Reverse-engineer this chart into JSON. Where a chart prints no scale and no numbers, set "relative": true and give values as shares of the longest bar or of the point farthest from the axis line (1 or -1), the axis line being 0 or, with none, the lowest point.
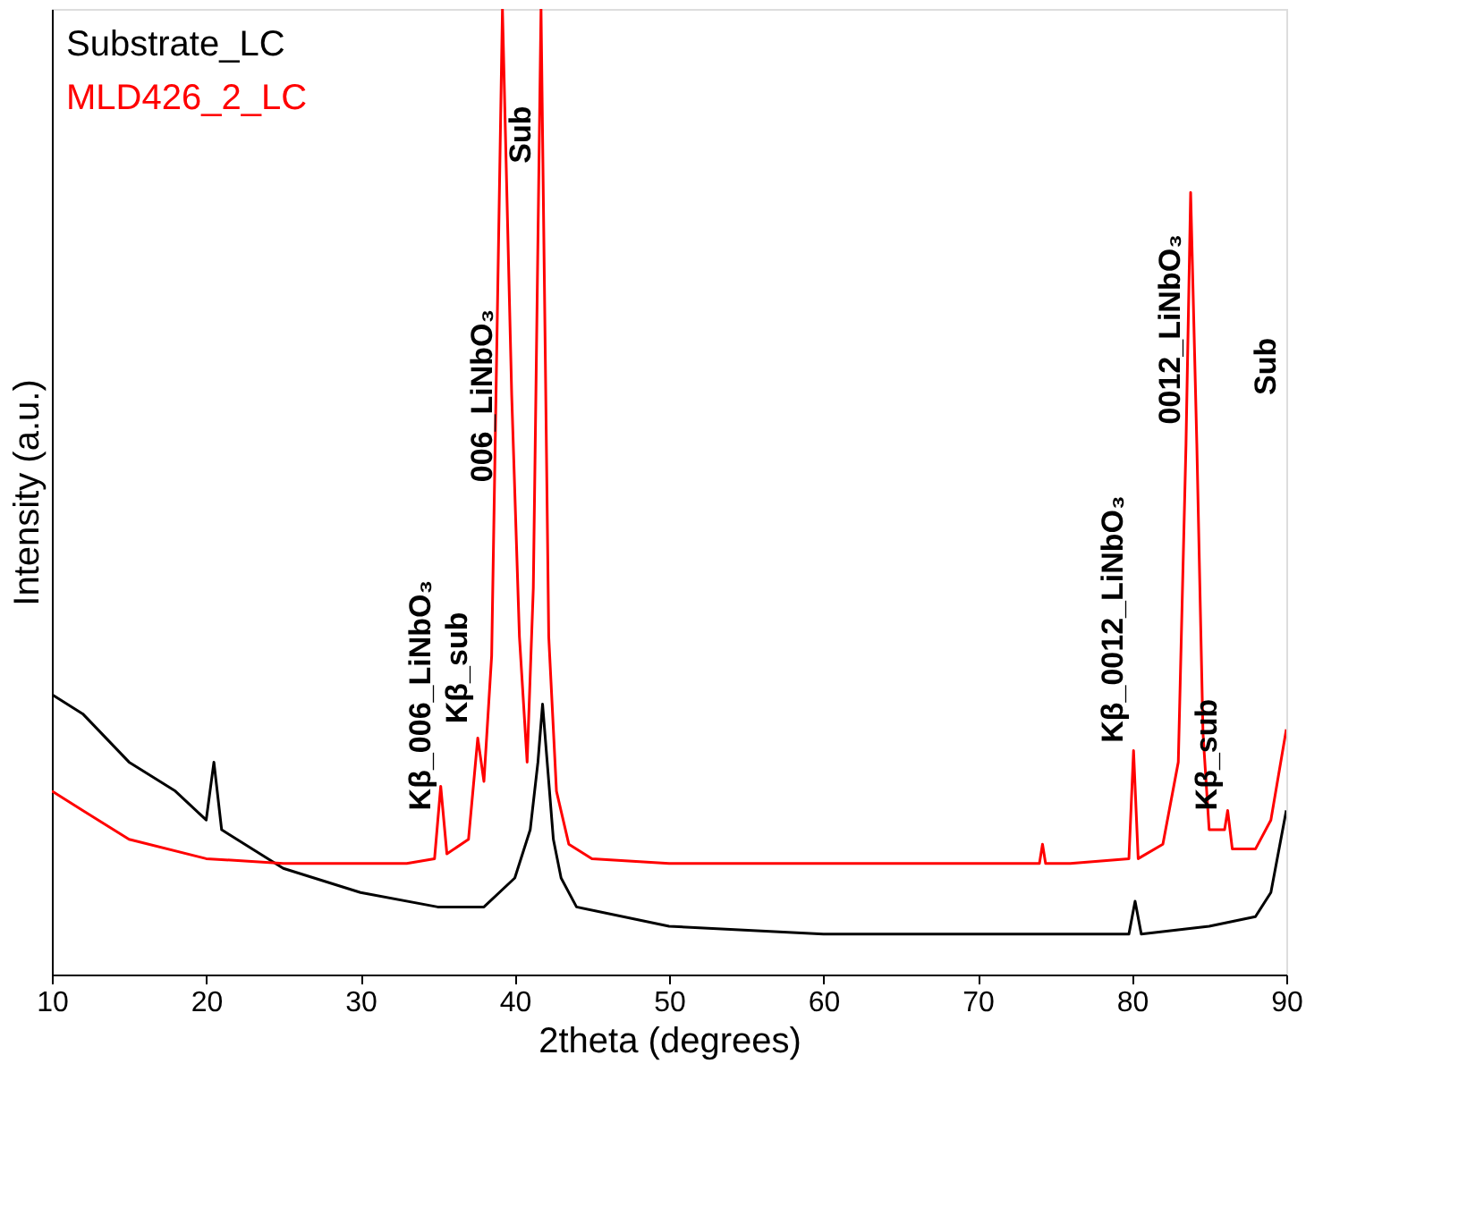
{
  "chart_data": {
    "type": "line",
    "relative": true,
    "xlabel": "2theta (degrees)",
    "ylabel": "Intensity (a.u.)",
    "xlim": [
      10,
      90
    ],
    "xticks": [
      10,
      20,
      30,
      40,
      50,
      60,
      70,
      80,
      90
    ],
    "legend": "top left",
    "grid": false,
    "line_style": "solid",
    "marker": "none",
    "series": [
      {
        "name": "Substrate_LC",
        "color": "#000000",
        "x": [
          10,
          12,
          15,
          18,
          20,
          20.5,
          21,
          25,
          30,
          35,
          38,
          40,
          41,
          41.5,
          41.8,
          42.2,
          42.5,
          43,
          44,
          50,
          60,
          70,
          79.8,
          80.2,
          80.6,
          85,
          88,
          89,
          90
        ],
        "values": [
          0.29,
          0.27,
          0.22,
          0.19,
          0.16,
          0.22,
          0.15,
          0.11,
          0.085,
          0.07,
          0.07,
          0.1,
          0.15,
          0.22,
          0.28,
          0.2,
          0.14,
          0.1,
          0.07,
          0.05,
          0.042,
          0.042,
          0.042,
          0.076,
          0.042,
          0.05,
          0.06,
          0.085,
          0.17
        ]
      },
      {
        "name": "MLD426_2_LC",
        "color": "#ff0000",
        "x": [
          10,
          12,
          15,
          20,
          25,
          30,
          33,
          34.8,
          35.2,
          35.6,
          37,
          37.6,
          38,
          38.5,
          39.2,
          39.8,
          40.3,
          40.8,
          41.2,
          41.7,
          42.2,
          42.7,
          43.5,
          45,
          50,
          60,
          70,
          74,
          74.2,
          74.4,
          76,
          79.8,
          80.1,
          80.4,
          82,
          83,
          83.5,
          83.8,
          84.2,
          84.6,
          85,
          86,
          86.2,
          86.5,
          88,
          89,
          90
        ],
        "values": [
          0.19,
          0.17,
          0.14,
          0.12,
          0.115,
          0.115,
          0.115,
          0.12,
          0.195,
          0.125,
          0.14,
          0.245,
          0.2,
          0.33,
          1.0,
          0.6,
          0.35,
          0.22,
          0.4,
          1.0,
          0.35,
          0.19,
          0.135,
          0.12,
          0.115,
          0.115,
          0.115,
          0.115,
          0.135,
          0.115,
          0.115,
          0.12,
          0.232,
          0.12,
          0.135,
          0.22,
          0.55,
          0.81,
          0.55,
          0.25,
          0.15,
          0.15,
          0.17,
          0.13,
          0.13,
          0.16,
          0.254
        ]
      }
    ],
    "annotations": [
      {
        "text": "Kβ_006_LiNbO₃",
        "x": 35.2,
        "y": 0.17
      },
      {
        "text": "Kβ_sub",
        "x": 37.6,
        "y": 0.26
      },
      {
        "text": "006_LiNbO₃",
        "x": 39.2,
        "y": 0.51
      },
      {
        "text": "Sub",
        "x": 41.7,
        "y": 0.84
      },
      {
        "text": "Kβ_0012_LiNbO₃",
        "x": 80.1,
        "y": 0.24
      },
      {
        "text": "0012_LiNbO₃",
        "x": 83.8,
        "y": 0.57
      },
      {
        "text": "Kβ_sub",
        "x": 86.2,
        "y": 0.17
      },
      "Sub"
    ]
  }
}
